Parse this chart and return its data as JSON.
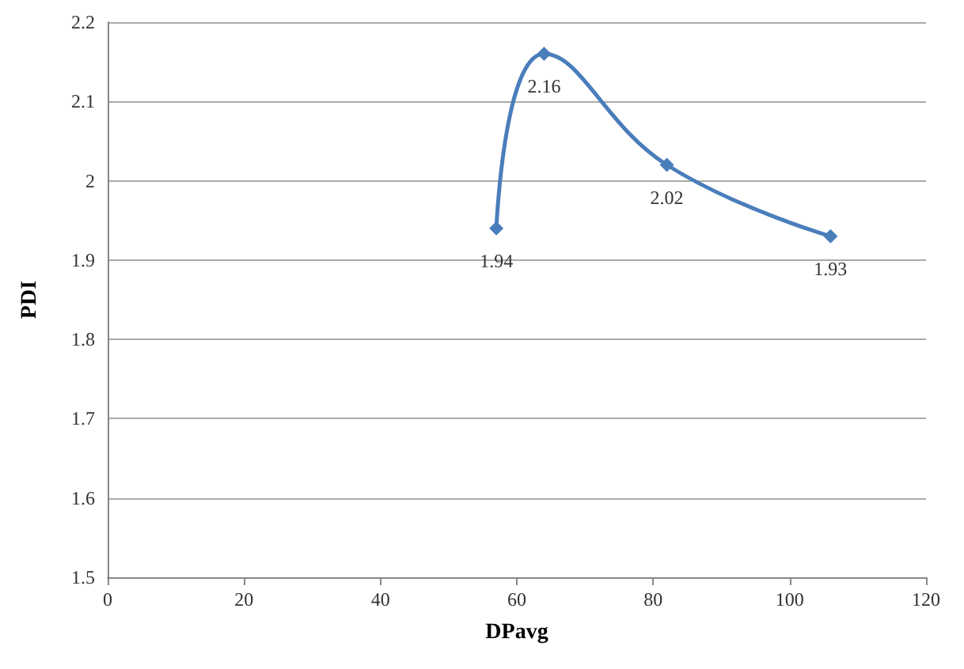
{
  "chart_data": {
    "type": "line",
    "xlabel": "DPavg",
    "ylabel": "PDI",
    "x": [
      57,
      64,
      82,
      106
    ],
    "series": [
      {
        "color": "#4a7ebb",
        "values": [
          1.94,
          2.16,
          2.02,
          1.93
        ]
      }
    ],
    "xlim": [
      0,
      120
    ],
    "xticks": [
      0,
      20,
      40,
      60,
      80,
      100,
      120
    ],
    "ylim": [
      1.5,
      2.2
    ],
    "yticks": [
      1.5,
      1.6,
      1.7,
      1.8,
      1.9,
      2,
      2.1,
      2.2
    ],
    "grid": "y",
    "marker": "diamond",
    "line_style": "solid",
    "data_labels": true
  }
}
